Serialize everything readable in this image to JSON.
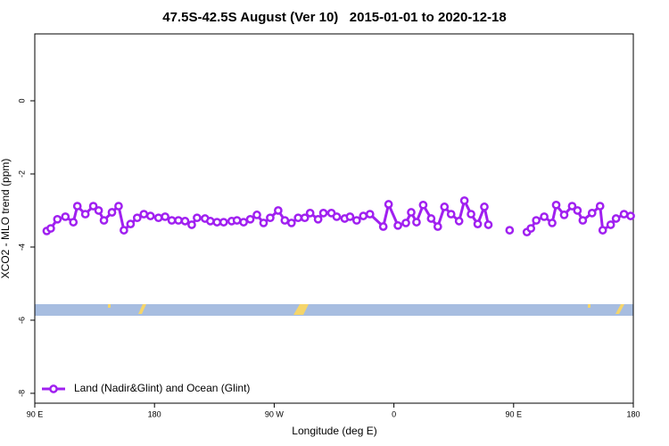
{
  "chart_data": {
    "type": "line",
    "title": "47.5S-42.5S August (Ver 10)   2015-01-01 to 2020-12-18",
    "xlabel": "Longitude (deg E)",
    "ylabel": "XCO2 - MLO trend (ppm)",
    "xlim": [
      90,
      540
    ],
    "xticks": [
      {
        "value": 90,
        "label": "90 E"
      },
      {
        "value": 180,
        "label": "180"
      },
      {
        "value": 270,
        "label": "90 W"
      },
      {
        "value": 360,
        "label": "0"
      },
      {
        "value": 450,
        "label": "90 E"
      },
      {
        "value": 540,
        "label": "180"
      }
    ],
    "ylim": [
      -8.27,
      1.83
    ],
    "yticks": [
      0,
      -2,
      -4,
      -6,
      -8
    ],
    "legend": "bottom-left",
    "x": [
      99,
      102,
      107,
      113,
      119,
      122,
      128,
      134,
      138,
      142,
      148,
      153,
      157,
      162,
      167,
      172,
      177,
      183,
      188,
      193,
      198,
      203,
      208,
      212,
      218,
      222,
      227,
      232,
      238,
      242,
      247,
      252,
      257,
      262,
      267,
      273,
      278,
      283,
      288,
      293,
      297,
      303,
      307,
      313,
      317,
      323,
      327,
      332,
      337,
      342,
      352,
      356,
      363,
      369,
      373,
      377,
      382,
      388,
      393,
      398,
      403,
      409,
      413,
      418,
      423,
      428,
      431,
      439,
      447,
      454,
      460,
      463,
      467,
      473,
      479,
      482,
      488,
      494,
      498,
      502,
      509,
      515,
      517,
      523,
      527,
      533,
      538
    ],
    "series": [
      {
        "name": "Land (Nadir&Glint) and Ocean (Glint)",
        "color": "#a020f0",
        "values": [
          -3.56,
          -3.49,
          -3.24,
          -3.17,
          -3.32,
          -2.88,
          -3.1,
          -2.88,
          -3.0,
          -3.27,
          -3.05,
          -2.88,
          -3.54,
          -3.37,
          -3.2,
          -3.1,
          -3.15,
          -3.2,
          -3.17,
          -3.27,
          -3.27,
          -3.29,
          -3.39,
          -3.2,
          -3.22,
          -3.29,
          -3.32,
          -3.32,
          -3.29,
          -3.27,
          -3.32,
          -3.24,
          -3.12,
          -3.34,
          -3.2,
          -3.0,
          -3.27,
          -3.34,
          -3.2,
          -3.2,
          -3.07,
          -3.24,
          -3.07,
          -3.07,
          -3.17,
          -3.22,
          -3.17,
          -3.27,
          -3.15,
          -3.1,
          -3.44,
          -2.83,
          -3.41,
          -3.34,
          -3.05,
          -3.32,
          -2.85,
          -3.22,
          -3.44,
          -2.9,
          -3.1,
          -3.29,
          -2.73,
          -3.1,
          -3.37,
          -2.9,
          -3.39,
          null,
          -3.54,
          null,
          -3.59,
          -3.49,
          -3.27,
          -3.17,
          -3.34,
          -2.85,
          -3.12,
          -2.88,
          -3.0,
          -3.27,
          -3.07,
          -2.88,
          -3.54,
          -3.39,
          -3.22,
          -3.1,
          -3.15
        ]
      }
    ]
  }
}
